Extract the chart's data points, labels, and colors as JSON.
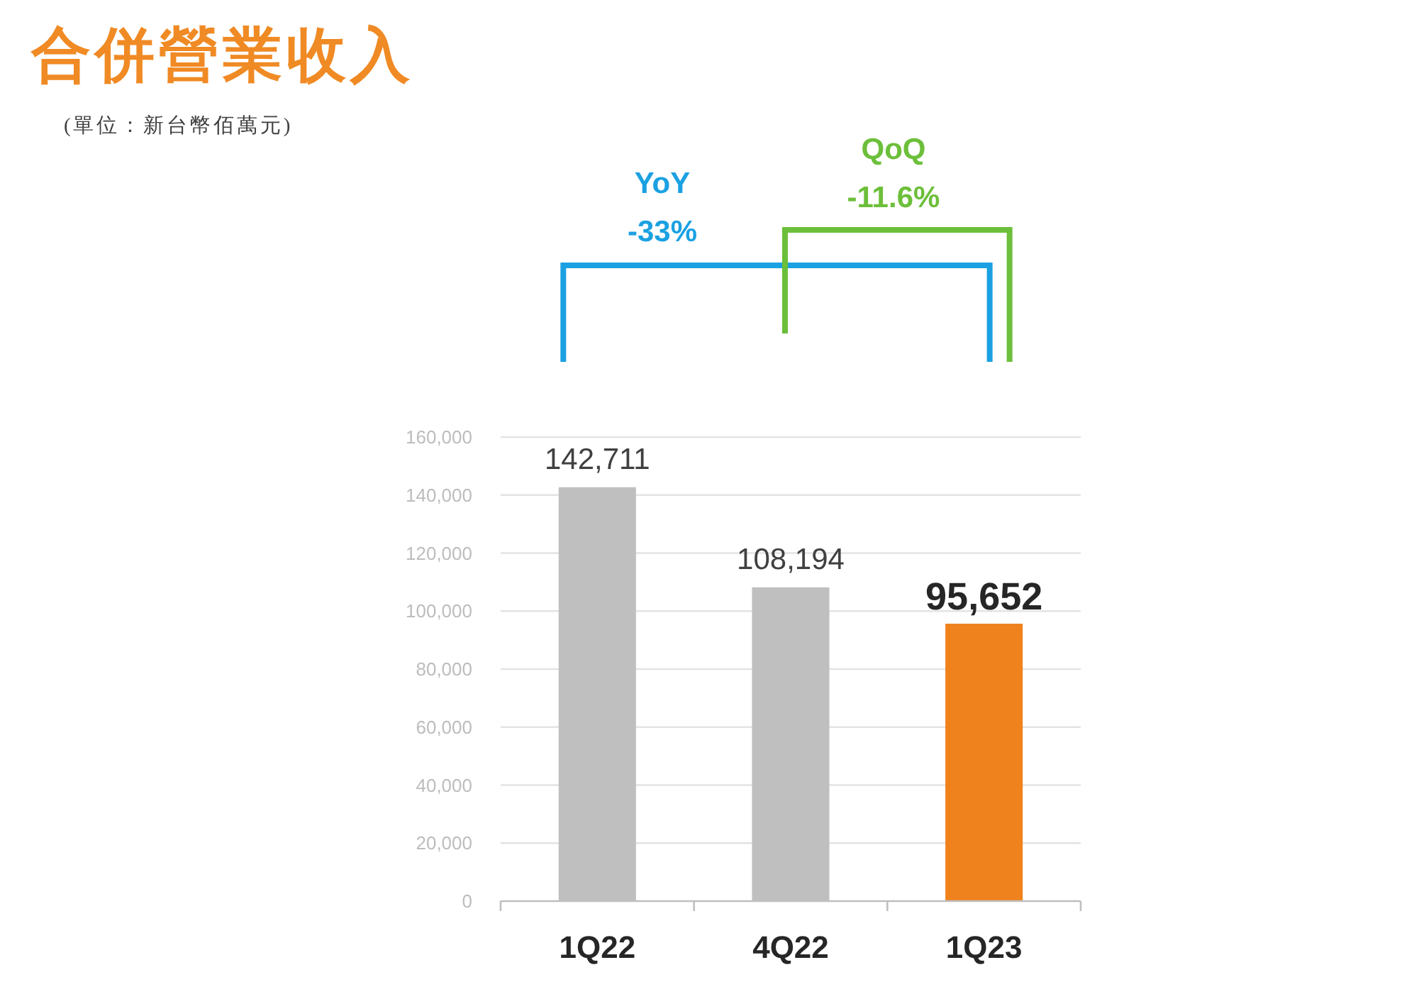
{
  "chart_data": {
    "type": "bar",
    "title": "合併營業收入",
    "subtitle": "(單位：新台幣佰萬元)",
    "categories": [
      "1Q22",
      "4Q22",
      "1Q23"
    ],
    "values": [
      142711,
      108194,
      95652
    ],
    "value_labels": [
      "142,711",
      "108,194",
      "95,652"
    ],
    "colors": [
      "#bfbfbf",
      "#bfbfbf",
      "#f0821e"
    ],
    "ylim": [
      0,
      160000
    ],
    "yticks": [
      {
        "value": 0,
        "label": "0"
      },
      {
        "value": 20000,
        "label": "20,000"
      },
      {
        "value": 40000,
        "label": "40,000"
      },
      {
        "value": 60000,
        "label": "60,000"
      },
      {
        "value": 80000,
        "label": "80,000"
      },
      {
        "value": 100000,
        "label": "100,000"
      },
      {
        "value": 120000,
        "label": "120,000"
      },
      {
        "value": 140000,
        "label": "140,000"
      },
      {
        "value": 160000,
        "label": "160,000"
      }
    ],
    "grid": "y",
    "annotations": [
      "YoY",
      "-33%",
      "QoQ",
      "-11.6%"
    ]
  }
}
